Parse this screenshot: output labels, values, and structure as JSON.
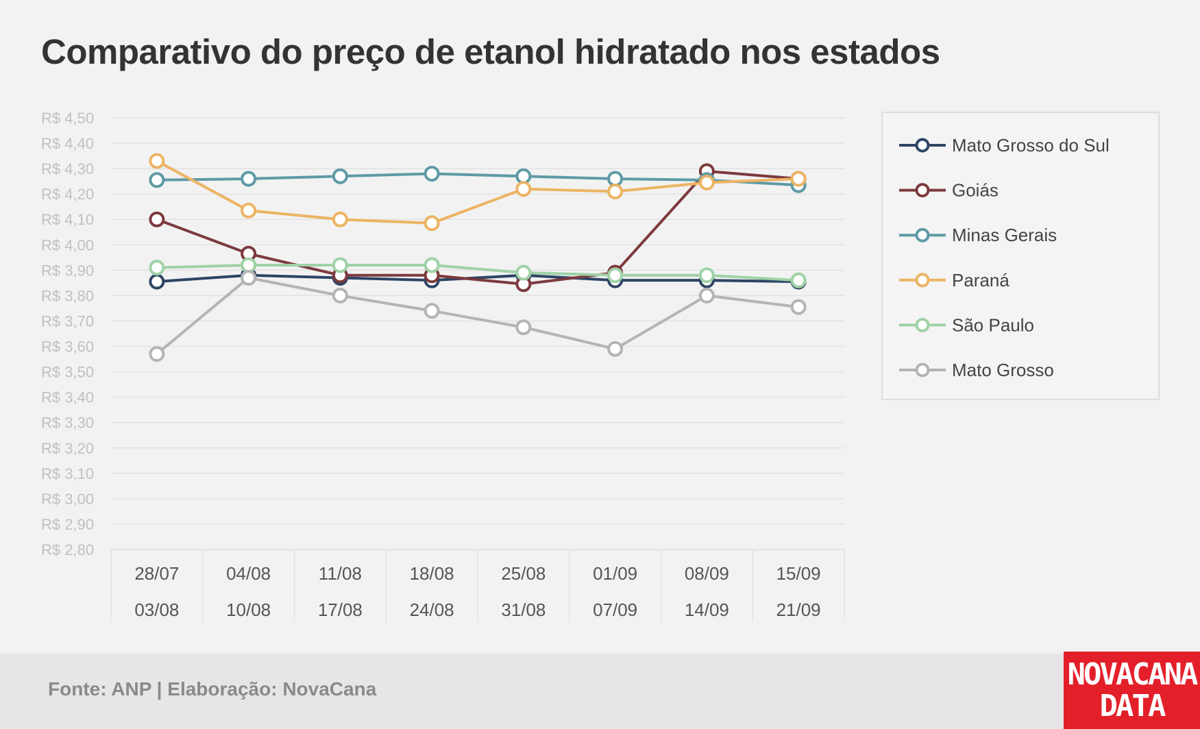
{
  "chart_data": {
    "type": "line",
    "title": "Comparativo do preço de etanol hidratado nos estados",
    "x": [
      {
        "line1": "28/07",
        "line2": "03/08"
      },
      {
        "line1": "04/08",
        "line2": "10/08"
      },
      {
        "line1": "11/08",
        "line2": "17/08"
      },
      {
        "line1": "18/08",
        "line2": "24/08"
      },
      {
        "line1": "25/08",
        "line2": "31/08"
      },
      {
        "line1": "01/09",
        "line2": "07/09"
      },
      {
        "line1": "08/09",
        "line2": "14/09"
      },
      {
        "line1": "15/09",
        "line2": "21/09"
      }
    ],
    "ylim": [
      2.8,
      4.5
    ],
    "ytick_step": 0.1,
    "ytick_prefix": "R$ ",
    "grid": true,
    "legend_position": "right",
    "series": [
      {
        "name": "Mato Grosso do Sul",
        "color": "#2d4565",
        "values": [
          3.855,
          3.88,
          3.87,
          3.86,
          3.88,
          3.86,
          3.86,
          3.855
        ]
      },
      {
        "name": "Goiás",
        "color": "#7d3a3e",
        "values": [
          4.1,
          3.965,
          3.88,
          3.88,
          3.845,
          3.89,
          4.29,
          4.26
        ]
      },
      {
        "name": "Minas Gerais",
        "color": "#5f9aa6",
        "values": [
          4.255,
          4.26,
          4.27,
          4.28,
          4.27,
          4.26,
          4.255,
          4.235
        ]
      },
      {
        "name": "Paraná",
        "color": "#ecb464",
        "values": [
          4.33,
          4.135,
          4.1,
          4.085,
          4.22,
          4.21,
          4.245,
          4.26
        ]
      },
      {
        "name": "São Paulo",
        "color": "#9fd2a6",
        "values": [
          3.91,
          3.92,
          3.92,
          3.92,
          3.89,
          3.88,
          3.88,
          3.86
        ]
      },
      {
        "name": "Mato Grosso",
        "color": "#b4b4b4",
        "values": [
          3.57,
          3.87,
          3.8,
          3.74,
          3.675,
          3.59,
          3.8,
          3.755
        ]
      }
    ]
  },
  "footer": {
    "source": "Fonte: ANP | Elaboração: NovaCana"
  },
  "logo": {
    "line1": "NOVACANA",
    "line2": "DATA"
  }
}
